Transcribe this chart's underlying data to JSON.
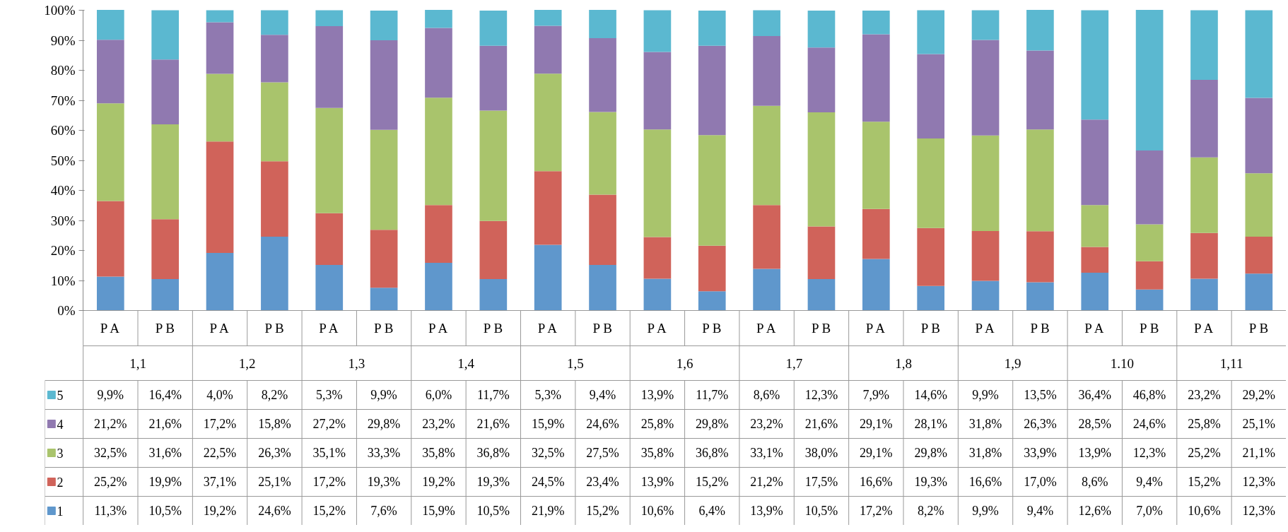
{
  "chart_data": {
    "type": "bar",
    "stacked": true,
    "grid": false,
    "legend": "bottom",
    "categories": [
      "P A",
      "P B",
      "P A",
      "P B",
      "P A",
      "P B",
      "P A",
      "P B",
      "P A",
      "P B",
      "P A",
      "P B",
      "P A",
      "P B",
      "P A",
      "P B",
      "P A",
      "P B",
      "P A",
      "P B",
      "P A",
      "P B"
    ],
    "annotations": [
      "1,1",
      "1,2",
      "1,3",
      "1,4",
      "1,5",
      "1,6",
      "1,7",
      "1,8",
      "1,9",
      "1.10",
      "1,11"
    ],
    "ylim": [
      0,
      100
    ],
    "yticks": [
      {
        "value": 0,
        "label": "0%"
      },
      {
        "value": 10,
        "label": "10%"
      },
      {
        "value": 20,
        "label": "20%"
      },
      {
        "value": 30,
        "label": "30%"
      },
      {
        "value": 40,
        "label": "40%"
      },
      {
        "value": 50,
        "label": "50%"
      },
      {
        "value": 60,
        "label": "60%"
      },
      {
        "value": 70,
        "label": "70%"
      },
      {
        "value": 80,
        "label": "80%"
      },
      {
        "value": 90,
        "label": "90%"
      },
      {
        "value": 100,
        "label": "100%"
      }
    ],
    "series": [
      {
        "name": "1",
        "color": "#5f97cc",
        "values": [
          11.3,
          10.5,
          19.2,
          24.6,
          15.2,
          7.6,
          15.9,
          10.5,
          21.9,
          15.2,
          10.6,
          6.4,
          13.9,
          10.5,
          17.2,
          8.2,
          9.9,
          9.4,
          12.6,
          7.0,
          10.6,
          12.3
        ],
        "value_labels": [
          "11,3%",
          "10,5%",
          "19,2%",
          "24,6%",
          "15,2%",
          "7,6%",
          "15,9%",
          "10,5%",
          "21,9%",
          "15,2%",
          "10,6%",
          "6,4%",
          "13,9%",
          "10,5%",
          "17,2%",
          "8,2%",
          "9,9%",
          "9,4%",
          "12,6%",
          "7,0%",
          "10,6%",
          "12,3%"
        ]
      },
      {
        "name": "2",
        "color": "#d0635a",
        "values": [
          25.2,
          19.9,
          37.1,
          25.1,
          17.2,
          19.3,
          19.2,
          19.3,
          24.5,
          23.4,
          13.9,
          15.2,
          21.2,
          17.5,
          16.6,
          19.3,
          16.6,
          17.0,
          8.6,
          9.4,
          15.2,
          12.3
        ],
        "value_labels": [
          "25,2%",
          "19,9%",
          "37,1%",
          "25,1%",
          "17,2%",
          "19,3%",
          "19,2%",
          "19,3%",
          "24,5%",
          "23,4%",
          "13,9%",
          "15,2%",
          "21,2%",
          "17,5%",
          "16,6%",
          "19,3%",
          "16,6%",
          "17,0%",
          "8,6%",
          "9,4%",
          "15,2%",
          "12,3%"
        ]
      },
      {
        "name": "3",
        "color": "#a9c46c",
        "values": [
          32.5,
          31.6,
          22.5,
          26.3,
          35.1,
          33.3,
          35.8,
          36.8,
          32.5,
          27.5,
          35.8,
          36.8,
          33.1,
          38.0,
          29.1,
          29.8,
          31.8,
          33.9,
          13.9,
          12.3,
          25.2,
          21.1
        ],
        "value_labels": [
          "32,5%",
          "31,6%",
          "22,5%",
          "26,3%",
          "35,1%",
          "33,3%",
          "35,8%",
          "36,8%",
          "32,5%",
          "27,5%",
          "35,8%",
          "36,8%",
          "33,1%",
          "38,0%",
          "29,1%",
          "29,8%",
          "31,8%",
          "33,9%",
          "13,9%",
          "12,3%",
          "25,2%",
          "21,1%"
        ]
      },
      {
        "name": "4",
        "color": "#9079b0",
        "values": [
          21.2,
          21.6,
          17.2,
          15.8,
          27.2,
          29.8,
          23.2,
          21.6,
          15.9,
          24.6,
          25.8,
          29.8,
          23.2,
          21.6,
          29.1,
          28.1,
          31.8,
          26.3,
          28.5,
          24.6,
          25.8,
          25.1
        ],
        "value_labels": [
          "21,2%",
          "21,6%",
          "17,2%",
          "15,8%",
          "27,2%",
          "29,8%",
          "23,2%",
          "21,6%",
          "15,9%",
          "24,6%",
          "25,8%",
          "29,8%",
          "23,2%",
          "21,6%",
          "29,1%",
          "28,1%",
          "31,8%",
          "26,3%",
          "28,5%",
          "24,6%",
          "25,8%",
          "25,1%"
        ]
      },
      {
        "name": "5",
        "color": "#5bb8d0",
        "values": [
          9.9,
          16.4,
          4.0,
          8.2,
          5.3,
          9.9,
          6.0,
          11.7,
          5.3,
          9.4,
          13.9,
          11.7,
          8.6,
          12.3,
          7.9,
          14.6,
          9.9,
          13.5,
          36.4,
          46.8,
          23.2,
          29.2
        ],
        "value_labels": [
          "9,9%",
          "16,4%",
          "4,0%",
          "8,2%",
          "5,3%",
          "9,9%",
          "6,0%",
          "11,7%",
          "5,3%",
          "9,4%",
          "13,9%",
          "11,7%",
          "8,6%",
          "12,3%",
          "7,9%",
          "14,6%",
          "9,9%",
          "13,5%",
          "36,4%",
          "46,8%",
          "23,2%",
          "29,2%"
        ]
      }
    ]
  }
}
